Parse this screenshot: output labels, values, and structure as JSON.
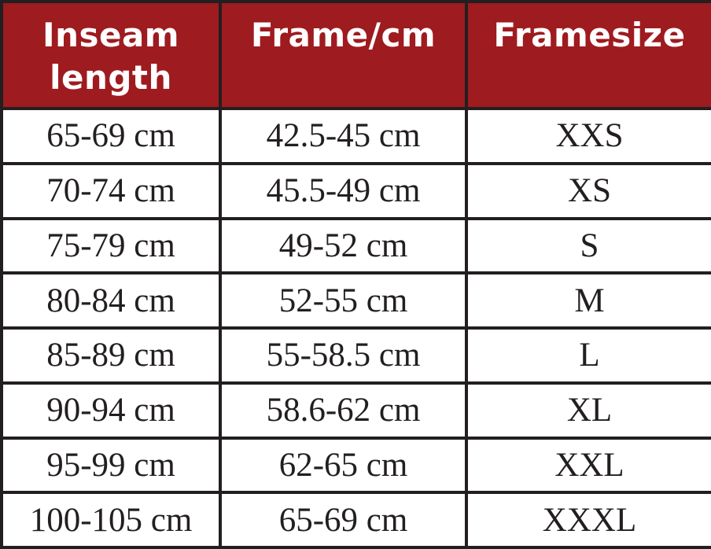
{
  "table": {
    "headers": [
      {
        "lines": [
          "Inseam",
          "length"
        ]
      },
      {
        "lines": [
          "Frame/cm"
        ]
      },
      {
        "lines": [
          "Framesize"
        ]
      }
    ],
    "rows": [
      [
        "65-69 cm",
        "42.5-45 cm",
        "XXS"
      ],
      [
        "70-74 cm",
        "45.5-49 cm",
        "XS"
      ],
      [
        "75-79 cm",
        "49-52 cm",
        "S"
      ],
      [
        "80-84 cm",
        "52-55 cm",
        "M"
      ],
      [
        "85-89 cm",
        "55-58.5 cm",
        "L"
      ],
      [
        "90-94 cm",
        "58.6-62 cm",
        "XL"
      ],
      [
        "95-99 cm",
        "62-65 cm",
        "XXL"
      ],
      [
        "100-105 cm",
        "65-69 cm",
        "XXXL"
      ]
    ]
  },
  "colors": {
    "header_background": "#9e1b1f",
    "header_text": "#ffffff",
    "border": "#231f20",
    "body_text": "#231f20"
  }
}
